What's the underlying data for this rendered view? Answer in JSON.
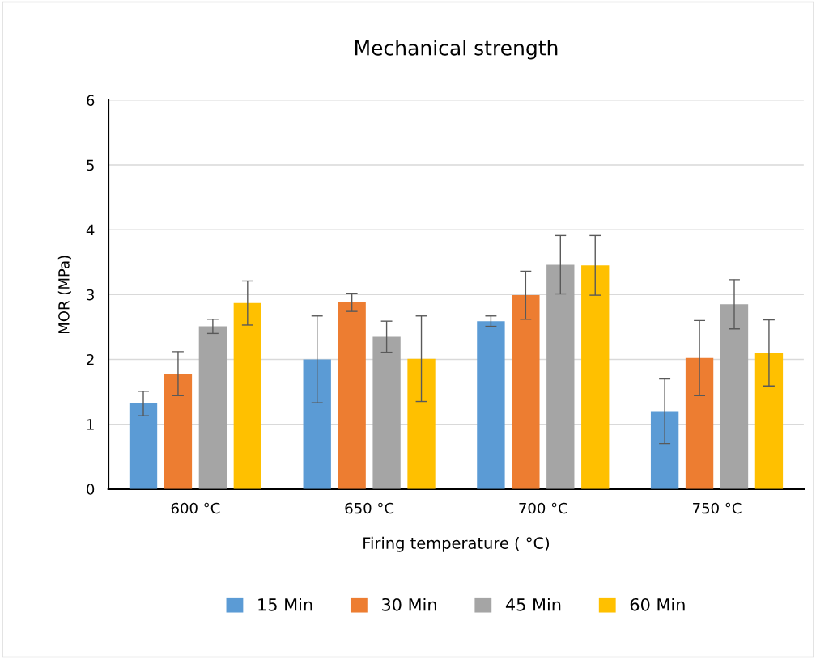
{
  "chart_data": {
    "type": "bar",
    "title": "Mechanical strength",
    "xlabel": "Firing temperature ( °C)",
    "ylabel": "MOR (MPa)",
    "categories": [
      "600 °C",
      "650 °C",
      "700 °C",
      "750 °C"
    ],
    "series": [
      {
        "name": "15 Min",
        "color": "#5b9bd5",
        "values": [
          1.32,
          2.0,
          2.59,
          1.2
        ],
        "errors": [
          0.19,
          0.67,
          0.08,
          0.5
        ]
      },
      {
        "name": "30 Min",
        "color": "#ed7d31",
        "values": [
          1.78,
          2.88,
          2.99,
          2.02
        ],
        "errors": [
          0.34,
          0.14,
          0.37,
          0.58
        ]
      },
      {
        "name": "45 Min",
        "color": "#a5a5a5",
        "values": [
          2.51,
          2.35,
          3.46,
          2.85
        ],
        "errors": [
          0.11,
          0.24,
          0.45,
          0.38
        ]
      },
      {
        "name": "60 Min",
        "color": "#ffc000",
        "values": [
          2.87,
          2.01,
          3.45,
          2.1
        ],
        "errors": [
          0.34,
          0.66,
          0.46,
          0.51
        ]
      }
    ],
    "ylim": [
      0,
      6
    ],
    "yticks": [
      0,
      1,
      2,
      3,
      4,
      5,
      6
    ],
    "grid": "y",
    "legend": "bottom"
  }
}
